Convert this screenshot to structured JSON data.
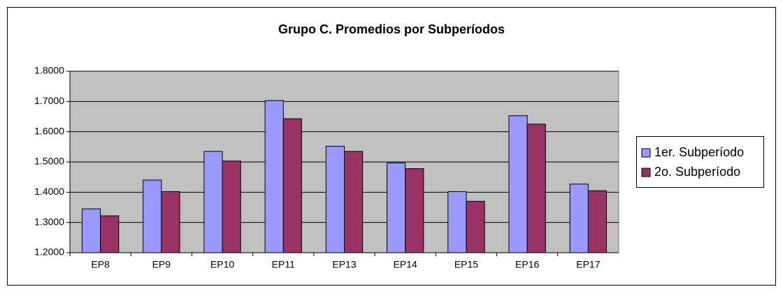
{
  "chart_data": {
    "type": "bar",
    "title": "Grupo C. Promedios por Subperíodos",
    "categories": [
      "EP8",
      "EP9",
      "EP10",
      "EP11",
      "EP13",
      "EP14",
      "EP15",
      "EP16",
      "EP17"
    ],
    "series": [
      {
        "name": "1er. Subperíodo",
        "color": "#9999ff",
        "values": [
          1.345,
          1.44,
          1.535,
          1.703,
          1.552,
          1.497,
          1.402,
          1.653,
          1.427
        ]
      },
      {
        "name": "2o. Subperíodo",
        "color": "#993366",
        "values": [
          1.322,
          1.402,
          1.503,
          1.643,
          1.535,
          1.478,
          1.37,
          1.625,
          1.405
        ]
      }
    ],
    "ylim": [
      1.2,
      1.8
    ],
    "yticks": [
      {
        "value": 1.2,
        "label": "1.2000"
      },
      {
        "value": 1.3,
        "label": "1.3000"
      },
      {
        "value": 1.4,
        "label": "1.4000"
      },
      {
        "value": 1.5,
        "label": "1.5000"
      },
      {
        "value": 1.6,
        "label": "1.6000"
      },
      {
        "value": 1.7,
        "label": "1.7000"
      },
      {
        "value": 1.8,
        "label": "1.8000"
      }
    ],
    "grid": true,
    "legend": "right"
  }
}
